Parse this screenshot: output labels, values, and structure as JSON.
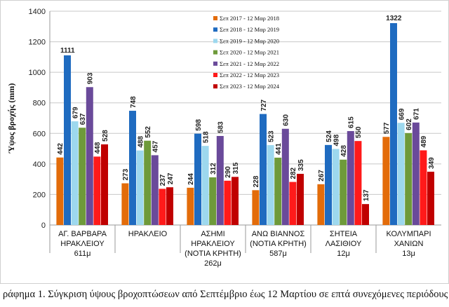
{
  "chart_data": {
    "type": "bar",
    "ylabel": "Ύψος βροχής (mm)",
    "ylim": [
      0,
      1400
    ],
    "ytick_step": 200,
    "grid": "horizontal",
    "legend_position": "top-center",
    "categories": [
      [
        "ΑΓ. ΒΑΡΒΑΡΑ",
        "ΗΡΑΚΛΕΙΟΥ",
        "611μ"
      ],
      [
        "ΗΡΑΚΛΕΙΟ"
      ],
      [
        "ΑΣΗΜΙ",
        "ΗΡΑΚΛΕΙΟΥ",
        "(ΝΟΤΙΑ ΚΡΗΤΗ)",
        "262μ"
      ],
      [
        "ΑΝΩ ΒΙΑΝΝΟΣ",
        "(ΝΟΤΙΑ ΚΡΗΤΗ)",
        "587μ"
      ],
      [
        "ΣΗΤΕΙΑ",
        "ΛΑΣΙΘΙΟΥ",
        "12μ"
      ],
      [
        "ΚΟΛΥΜΠΑΡΙ",
        "ΧΑΝΙΩΝ",
        "13μ"
      ]
    ],
    "series": [
      {
        "name": "Σεπ 2017 - 12 Μαρ 2018",
        "color": "#E36C0A",
        "values": [
          442,
          273,
          244,
          228,
          267,
          577
        ]
      },
      {
        "name": "Σεπ 2018 - 12 Μαρ 2019",
        "color": "#1F6BC0",
        "values": [
          1111,
          748,
          598,
          727,
          524,
          1322
        ]
      },
      {
        "name": "Σεπ 2019 - 12 Μαρ 2020",
        "color": "#9DD8EE",
        "values": [
          679,
          488,
          518,
          523,
          498,
          669
        ]
      },
      {
        "name": "Σεπ 2020 - 12 Μαρ 2021",
        "color": "#6E9A3A",
        "values": [
          637,
          552,
          312,
          441,
          428,
          602
        ]
      },
      {
        "name": "Σεπ 2021 - 12 Μαρ 2022",
        "color": "#6A4A9A",
        "values": [
          903,
          457,
          583,
          630,
          615,
          671
        ]
      },
      {
        "name": "Σεπ 2022 - 12 Μαρ 2023",
        "color": "#FF1A1A",
        "values": [
          448,
          237,
          290,
          282,
          550,
          489
        ]
      },
      {
        "name": "Σεπ 2023 - 12 Μαρ 2024",
        "color": "#C00000",
        "values": [
          528,
          247,
          315,
          335,
          137,
          349
        ]
      }
    ]
  },
  "caption": "ράφημα 1. Σύγκριση ύψους βροχοπτώσεων από  Σεπτέμβριο έως 12 Μαρτίου σε επτά συνεχόμενες περιόδους"
}
